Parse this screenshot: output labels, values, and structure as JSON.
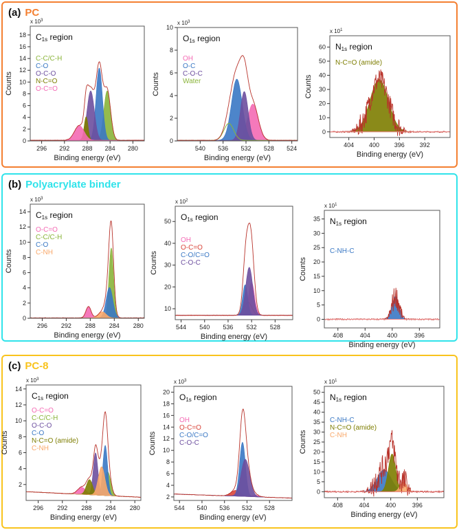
{
  "panels": [
    {
      "label": "(a)",
      "title": "PC",
      "color": "#f47f30"
    },
    {
      "label": "(b)",
      "title": "Polyacrylate binder",
      "color": "#2fe3ea"
    },
    {
      "label": "(c)",
      "title": "PC-8",
      "color": "#f9c31c"
    }
  ],
  "colors": {
    "envelope": "#b8322a",
    "pink": "#f46ab4",
    "green": "#8ab43a",
    "blue": "#3a78c4",
    "purple": "#6d4f9f",
    "olive": "#7d7d00",
    "orange": "#f9a86a",
    "red": "#d9453a"
  },
  "chart_data": [
    {
      "panel": 0,
      "type": "area",
      "region": "C",
      "region_sub": "1s",
      "title_suffix": " region",
      "multiplier": "x 10",
      "multiplier_exp": "3",
      "xlabel": "Binding energy (eV)",
      "ylabel": "Counts",
      "xlim": [
        298,
        278
      ],
      "xticks": [
        296,
        292,
        288,
        284,
        280
      ],
      "ylim": [
        0,
        19.5
      ],
      "yticks": [
        0,
        2,
        4,
        6,
        8,
        10,
        12,
        14,
        16,
        18
      ],
      "baseline": [
        0.1,
        0.1
      ],
      "series": [
        {
          "name": "C-C/C-H",
          "color": "green",
          "center": 284.5,
          "height": 8.4,
          "fwhm": 1.4
        },
        {
          "name": "C-O",
          "color": "blue",
          "center": 285.9,
          "height": 12.3,
          "fwhm": 1.3
        },
        {
          "name": "O-C-O",
          "color": "purple",
          "center": 287.4,
          "height": 8.4,
          "fwhm": 1.5
        },
        {
          "name": "N-C=O",
          "color": "olive",
          "center": 288.2,
          "height": 4.0,
          "fwhm": 0.8
        },
        {
          "name": "O-C=O",
          "color": "pink",
          "center": 289.4,
          "height": 2.5,
          "fwhm": 2.0
        }
      ]
    },
    {
      "panel": 0,
      "type": "area",
      "region": "O",
      "region_sub": "1s",
      "title_suffix": " region",
      "multiplier": "x 10",
      "multiplier_exp": "3",
      "xlabel": "Binding energy (eV)",
      "ylabel": "Counts",
      "xlim": [
        544,
        523
      ],
      "xticks": [
        540,
        536,
        532,
        528,
        524
      ],
      "ylim": [
        0,
        10
      ],
      "yticks": [
        0,
        2,
        4,
        6,
        8,
        10
      ],
      "baseline": [
        0.05,
        0.05
      ],
      "series": [
        {
          "name": "OH",
          "color": "pink",
          "center": 530.8,
          "height": 3.2,
          "fwhm": 2.2
        },
        {
          "name": "O-C",
          "color": "blue",
          "center": 533.6,
          "height": 5.4,
          "fwhm": 2.2
        },
        {
          "name": "C-O-C",
          "color": "purple",
          "center": 532.3,
          "height": 4.3,
          "fwhm": 1.6
        },
        {
          "name": "Water",
          "color": "green",
          "center": 535.0,
          "height": 1.5,
          "fwhm": 2.0,
          "outline": true
        }
      ]
    },
    {
      "panel": 0,
      "type": "area",
      "region": "N",
      "region_sub": "1s",
      "title_suffix": " region",
      "multiplier": "x 10",
      "multiplier_exp": "1",
      "xlabel": "Binding energy (eV)",
      "ylabel": "Counts",
      "xlim": [
        407,
        388
      ],
      "xticks": [
        404,
        400,
        396,
        392
      ],
      "ylim": [
        -4,
        68
      ],
      "yticks": [
        0,
        10,
        20,
        30,
        40,
        50,
        60
      ],
      "baseline": [
        0,
        0
      ],
      "noise": 8,
      "series": [
        {
          "name": "N-C=O (amide)",
          "color": "olive",
          "center": 399.2,
          "height": 37,
          "fwhm": 3.4
        }
      ]
    },
    {
      "panel": 1,
      "type": "area",
      "region": "C",
      "region_sub": "1s",
      "title_suffix": " region",
      "multiplier": "x 10",
      "multiplier_exp": "3",
      "xlabel": "Binding energy (eV)",
      "ylabel": "Counts",
      "xlim": [
        298,
        279
      ],
      "xticks": [
        296,
        292,
        288,
        284,
        280
      ],
      "ylim": [
        0,
        15
      ],
      "yticks": [
        0,
        2,
        4,
        6,
        8,
        10,
        12,
        14
      ],
      "baseline": [
        0.05,
        0.05
      ],
      "series": [
        {
          "name": "O-C=O",
          "color": "pink",
          "center": 288.3,
          "height": 1.5,
          "fwhm": 1.0
        },
        {
          "name": "C-C/C-H",
          "color": "green",
          "center": 284.5,
          "height": 9.2,
          "fwhm": 0.9
        },
        {
          "name": "C-O",
          "color": "blue",
          "center": 284.8,
          "height": 4.0,
          "fwhm": 1.3
        },
        {
          "name": "C-NH",
          "color": "orange",
          "center": 286.0,
          "height": 0.8,
          "fwhm": 1.5
        }
      ]
    },
    {
      "panel": 1,
      "type": "area",
      "region": "O",
      "region_sub": "1s",
      "title_suffix": " region",
      "multiplier": "x 10",
      "multiplier_exp": "2",
      "xlabel": "Binding energy (eV)",
      "ylabel": "Counts",
      "xlim": [
        545,
        525
      ],
      "xticks": [
        544,
        540,
        536,
        532,
        528
      ],
      "ylim": [
        5,
        57
      ],
      "yticks": [
        10,
        20,
        30,
        40,
        50
      ],
      "baseline": [
        7,
        7
      ],
      "series": [
        {
          "name": "OH",
          "color": "pink",
          "center": 532.0,
          "height": 15,
          "fwhm": 1.2
        },
        {
          "name": "O-C=O",
          "color": "red",
          "center": 532.6,
          "height": 6,
          "fwhm": 1.5,
          "outline": true
        },
        {
          "name": "C-O/C=O",
          "color": "blue",
          "center": 533.1,
          "height": 14,
          "fwhm": 1.0
        },
        {
          "name": "C-O-C",
          "color": "purple",
          "center": 532.4,
          "height": 22,
          "fwhm": 1.4
        }
      ]
    },
    {
      "panel": 1,
      "type": "area",
      "region": "N",
      "region_sub": "1s",
      "title_suffix": " region",
      "multiplier": "x 10",
      "multiplier_exp": "1",
      "xlabel": "Binding energy (eV)",
      "ylabel": "Counts",
      "xlim": [
        410,
        393
      ],
      "xticks": [
        408,
        404,
        400,
        396
      ],
      "ylim": [
        -3,
        38
      ],
      "yticks": [
        0,
        5,
        10,
        15,
        20,
        25,
        30,
        35
      ],
      "baseline": [
        0,
        0
      ],
      "noise": 4,
      "series": [
        {
          "name": "C-NH-C",
          "color": "blue",
          "center": 399.5,
          "height": 8,
          "fwhm": 1.2
        }
      ]
    },
    {
      "panel": 2,
      "type": "area",
      "region": "C",
      "region_sub": "1s",
      "title_suffix": " region",
      "multiplier": "x 10",
      "multiplier_exp": "3",
      "xlabel": "Binding energy (eV)",
      "ylabel": "Counts",
      "xlim": [
        298,
        279
      ],
      "xticks": [
        296,
        292,
        288,
        284,
        280
      ],
      "ylim": [
        0,
        14.5
      ],
      "yticks": [
        2,
        4,
        6,
        8,
        10,
        12,
        14
      ],
      "baseline": [
        1.1,
        0.4
      ],
      "series": [
        {
          "name": "O-C=O",
          "color": "pink",
          "center": 288.8,
          "height": 0.9,
          "fwhm": 1.6
        },
        {
          "name": "C-C/C-H",
          "color": "green",
          "center": 284.5,
          "height": 3.0,
          "fwhm": 1.2
        },
        {
          "name": "O-C-O",
          "color": "purple",
          "center": 286.5,
          "height": 5.3,
          "fwhm": 0.9
        },
        {
          "name": "C-O",
          "color": "blue",
          "center": 284.9,
          "height": 6.3,
          "fwhm": 0.9
        },
        {
          "name": "N-C=O (amide)",
          "color": "olive",
          "center": 287.5,
          "height": 1.9,
          "fwhm": 1.2
        },
        {
          "name": "C-NH",
          "color": "orange",
          "center": 285.5,
          "height": 3.6,
          "fwhm": 1.3
        }
      ]
    },
    {
      "panel": 2,
      "type": "area",
      "region": "O",
      "region_sub": "1s",
      "title_suffix": " region",
      "multiplier": "x 10",
      "multiplier_exp": "3",
      "xlabel": "Binding energy (eV)",
      "ylabel": "Counts",
      "xlim": [
        545,
        524
      ],
      "xticks": [
        544,
        540,
        536,
        532,
        528
      ],
      "ylim": [
        1.4,
        21
      ],
      "yticks": [
        2,
        4,
        6,
        8,
        10,
        12,
        14,
        16,
        18,
        20
      ],
      "baseline": [
        2.5,
        1.8
      ],
      "series": [
        {
          "name": "OH",
          "color": "pink",
          "center": 530.5,
          "height": 0.3,
          "fwhm": 1.5
        },
        {
          "name": "O-C=O",
          "color": "red",
          "center": 534.0,
          "height": 1.0,
          "fwhm": 2.0
        },
        {
          "name": "C-O/C=O",
          "color": "blue",
          "center": 532.8,
          "height": 9.3,
          "fwhm": 1.2
        },
        {
          "name": "C-O-C",
          "color": "purple",
          "center": 532.3,
          "height": 6.4,
          "fwhm": 1.8
        }
      ]
    },
    {
      "panel": 2,
      "type": "area",
      "region": "N",
      "region_sub": "1s",
      "title_suffix": " region",
      "multiplier": "x 10",
      "multiplier_exp": "1",
      "xlabel": "Binding energy (eV)",
      "ylabel": "Counts",
      "xlim": [
        410,
        392
      ],
      "xticks": [
        408,
        404,
        400,
        396
      ],
      "ylim": [
        -3,
        53
      ],
      "yticks": [
        0,
        5,
        10,
        15,
        20,
        25,
        30,
        35,
        40,
        45,
        50
      ],
      "baseline": [
        0,
        0
      ],
      "noise": 7,
      "series": [
        {
          "name": "C-NH-C",
          "color": "blue",
          "center": 401.0,
          "height": 11,
          "fwhm": 2.5
        },
        {
          "name": "N-C=O (amide)",
          "color": "olive",
          "center": 399.8,
          "height": 19,
          "fwhm": 1.3
        },
        {
          "name": "C-NH",
          "color": "orange",
          "center": 398.1,
          "height": 5,
          "fwhm": 1.2
        }
      ]
    }
  ]
}
